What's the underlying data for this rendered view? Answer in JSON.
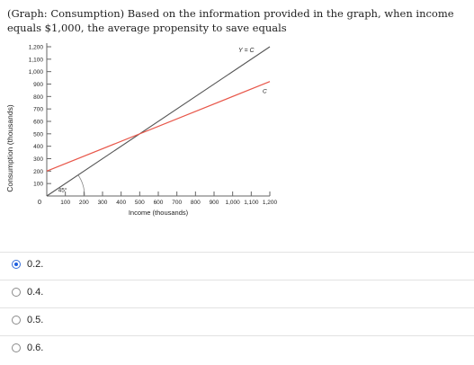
{
  "question": {
    "text": "(Graph: Consumption) Based on the information provided in the graph, when income equals $1,000, the average propensity to save equals"
  },
  "chart_data": {
    "type": "line",
    "xlabel": "Income (thousands)",
    "ylabel": "Consumption (thousands)",
    "x_ticks": [
      "100",
      "200",
      "300",
      "400",
      "500",
      "600",
      "700",
      "800",
      "900",
      "1,000",
      "1,100",
      "1,200"
    ],
    "y_ticks": [
      "100",
      "200",
      "300",
      "400",
      "500",
      "600",
      "700",
      "800",
      "900",
      "1,000",
      "1,100",
      "1,200"
    ],
    "origin_label": "0",
    "xlim": [
      0,
      1200
    ],
    "ylim": [
      0,
      1200
    ],
    "series": [
      {
        "name": "Y = C",
        "color": "#555555",
        "x": [
          0,
          1200
        ],
        "y": [
          0,
          1200
        ]
      },
      {
        "name": "C",
        "color": "#e8574a",
        "x": [
          0,
          1200
        ],
        "y": [
          200,
          920
        ]
      }
    ],
    "annotations": [
      {
        "text": "45°",
        "x": 85,
        "y": 40
      }
    ]
  },
  "options": [
    {
      "label": "0.2.",
      "selected": true
    },
    {
      "label": "0.4.",
      "selected": false
    },
    {
      "label": "0.5.",
      "selected": false
    },
    {
      "label": "0.6.",
      "selected": false
    }
  ]
}
